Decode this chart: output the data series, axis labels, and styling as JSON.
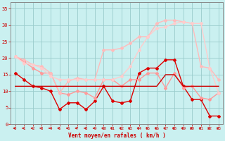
{
  "xlabel": "Vent moyen/en rafales ( km/h )",
  "bg_color": "#caf0f0",
  "grid_color": "#99cccc",
  "x_ticks": [
    0,
    1,
    2,
    3,
    4,
    5,
    6,
    7,
    8,
    9,
    10,
    11,
    12,
    13,
    14,
    15,
    16,
    17,
    18,
    19,
    20,
    21,
    22,
    23
  ],
  "ylim": [
    0,
    37
  ],
  "xlim": [
    -0.5,
    23.5
  ],
  "yticks": [
    0,
    5,
    10,
    15,
    20,
    25,
    30,
    35
  ],
  "series": [
    {
      "x": [
        0,
        1,
        2,
        3,
        4,
        5,
        6,
        7,
        8,
        9,
        10,
        11,
        12,
        13,
        14,
        15,
        16,
        17,
        18,
        19,
        20,
        21,
        22,
        23
      ],
      "y": [
        15.5,
        13.5,
        11.5,
        11.0,
        10.0,
        4.5,
        6.5,
        6.5,
        4.5,
        7.0,
        11.5,
        7.0,
        6.5,
        7.0,
        15.5,
        17.0,
        17.0,
        19.5,
        19.5,
        11.5,
        7.5,
        7.5,
        2.5,
        2.5
      ],
      "color": "#dd0000",
      "lw": 1.0,
      "marker": "D",
      "ms": 2.0
    },
    {
      "x": [
        0,
        1,
        2,
        3,
        4,
        5,
        6,
        7,
        8,
        9,
        10,
        11,
        12,
        13,
        14,
        15,
        16,
        17,
        18,
        19,
        20,
        21,
        22,
        23
      ],
      "y": [
        20.5,
        19.0,
        17.0,
        15.5,
        15.5,
        9.5,
        9.0,
        10.0,
        9.5,
        8.0,
        13.5,
        13.5,
        11.5,
        13.5,
        13.5,
        15.5,
        15.5,
        11.0,
        15.5,
        11.0,
        11.5,
        8.0,
        7.5,
        9.5
      ],
      "color": "#ff9999",
      "lw": 1.0,
      "marker": "D",
      "ms": 2.0
    },
    {
      "x": [
        0,
        1,
        2,
        3,
        4,
        5,
        6,
        7,
        8,
        9,
        10,
        11,
        12,
        13,
        14,
        15,
        16,
        17,
        18,
        19,
        20,
        21,
        22,
        23
      ],
      "y": [
        20.5,
        19.5,
        18.0,
        17.5,
        15.5,
        9.5,
        13.0,
        14.0,
        13.5,
        13.5,
        22.5,
        22.5,
        23.0,
        24.5,
        26.5,
        26.5,
        30.5,
        31.5,
        31.5,
        31.0,
        30.5,
        17.5,
        17.0,
        13.5
      ],
      "color": "#ffbbbb",
      "lw": 1.0,
      "marker": "D",
      "ms": 2.0
    },
    {
      "x": [
        0,
        1,
        2,
        3,
        4,
        5,
        6,
        7,
        8,
        9,
        10,
        11,
        12,
        13,
        14,
        15,
        16,
        17,
        18,
        19,
        20,
        21,
        22,
        23
      ],
      "y": [
        20.5,
        18.5,
        18.0,
        17.0,
        14.5,
        13.5,
        13.5,
        13.5,
        13.5,
        13.5,
        13.5,
        13.5,
        14.5,
        17.5,
        22.5,
        26.5,
        29.0,
        29.5,
        30.5,
        31.0,
        30.5,
        30.5,
        17.0,
        9.5
      ],
      "color": "#ffcccc",
      "lw": 1.0,
      "marker": "D",
      "ms": 2.0
    },
    {
      "x": [
        0,
        1,
        2,
        3,
        4,
        5,
        6,
        7,
        8,
        9,
        10,
        11,
        12,
        13,
        14,
        15,
        16,
        17,
        18,
        19,
        20,
        21,
        22,
        23
      ],
      "y": [
        11.5,
        11.5,
        11.5,
        11.5,
        11.5,
        11.5,
        11.5,
        11.5,
        11.5,
        11.5,
        11.5,
        11.5,
        11.5,
        11.5,
        11.5,
        11.5,
        11.5,
        15.0,
        15.0,
        11.5,
        11.5,
        11.5,
        11.5,
        11.5
      ],
      "color": "#cc0000",
      "lw": 1.0,
      "marker": null,
      "ms": 0
    }
  ],
  "arrow_color": "#cc0000",
  "tick_color": "#cc0000",
  "label_color": "#cc0000",
  "axis_color": "#888888"
}
